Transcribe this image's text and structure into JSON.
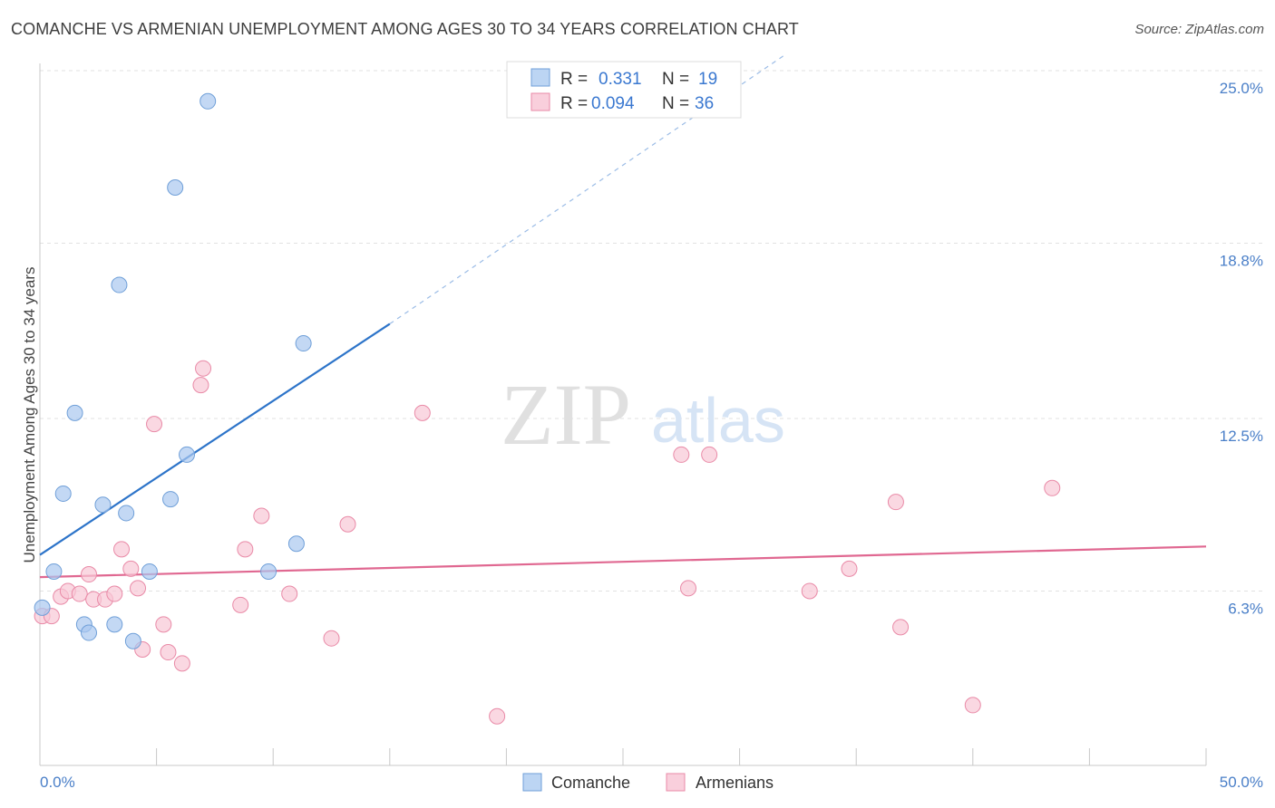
{
  "title": "COMANCHE VS ARMENIAN UNEMPLOYMENT AMONG AGES 30 TO 34 YEARS CORRELATION CHART",
  "source": "Source: ZipAtlas.com",
  "watermark": {
    "zip": "ZIP",
    "atlas": "atlas"
  },
  "legend_top": {
    "rows": [
      {
        "r_label": "R = ",
        "r_value": "0.331",
        "n_label": "N = ",
        "n_value": "19"
      },
      {
        "r_label": "R = ",
        "r_value": "0.094",
        "n_label": "N = ",
        "n_value": "36"
      }
    ]
  },
  "chart_data": {
    "type": "scatter",
    "title": "COMANCHE VS ARMENIAN UNEMPLOYMENT AMONG AGES 30 TO 34 YEARS CORRELATION CHART",
    "xlabel": "",
    "ylabel": "Unemployment Among Ages 30 to 34 years",
    "xlim": [
      0,
      50
    ],
    "ylim": [
      0,
      25.6
    ],
    "x_tick_labels": [
      "0.0%",
      "50.0%"
    ],
    "y_ticks": [
      6.3,
      12.5,
      18.8,
      25.0
    ],
    "y_tick_labels": [
      "6.3%",
      "12.5%",
      "18.8%",
      "25.0%"
    ],
    "grid": true,
    "legend_position": "bottom",
    "series": [
      {
        "name": "Comanche",
        "color": "#a9c8ef",
        "edge": "#6f9fd8",
        "line_color": "#2d74c9",
        "trend": {
          "x0": 0,
          "y0": 7.6,
          "x1": 15,
          "y1": 15.9,
          "dash_to_x": 32,
          "dash_to_y": 25.6
        },
        "points": [
          [
            0.1,
            5.7
          ],
          [
            0.6,
            7.0
          ],
          [
            1.0,
            9.8
          ],
          [
            1.5,
            12.7
          ],
          [
            1.9,
            5.1
          ],
          [
            2.1,
            4.8
          ],
          [
            2.7,
            9.4
          ],
          [
            3.2,
            5.1
          ],
          [
            3.7,
            9.1
          ],
          [
            4.0,
            4.5
          ],
          [
            4.7,
            7.0
          ],
          [
            5.6,
            9.6
          ],
          [
            5.8,
            20.8
          ],
          [
            6.3,
            11.2
          ],
          [
            7.2,
            23.9
          ],
          [
            3.4,
            17.3
          ],
          [
            9.8,
            7.0
          ],
          [
            11.0,
            8.0
          ],
          [
            11.3,
            15.2
          ]
        ]
      },
      {
        "name": "Armenians",
        "color": "#f8c8d6",
        "edge": "#e98aa7",
        "line_color": "#e06891",
        "trend": {
          "x0": 0,
          "y0": 6.8,
          "x1": 50,
          "y1": 7.9
        },
        "points": [
          [
            0.1,
            5.4
          ],
          [
            0.5,
            5.4
          ],
          [
            0.9,
            6.1
          ],
          [
            1.2,
            6.3
          ],
          [
            1.7,
            6.2
          ],
          [
            2.1,
            6.9
          ],
          [
            2.3,
            6.0
          ],
          [
            2.8,
            6.0
          ],
          [
            3.2,
            6.2
          ],
          [
            3.5,
            7.8
          ],
          [
            3.9,
            7.1
          ],
          [
            4.2,
            6.4
          ],
          [
            4.4,
            4.2
          ],
          [
            4.9,
            12.3
          ],
          [
            5.3,
            5.1
          ],
          [
            5.5,
            4.1
          ],
          [
            6.1,
            3.7
          ],
          [
            6.9,
            13.7
          ],
          [
            7.0,
            14.3
          ],
          [
            8.6,
            5.8
          ],
          [
            8.8,
            7.8
          ],
          [
            9.5,
            9.0
          ],
          [
            10.7,
            6.2
          ],
          [
            12.5,
            4.6
          ],
          [
            13.2,
            8.7
          ],
          [
            16.4,
            12.7
          ],
          [
            19.6,
            1.8
          ],
          [
            27.5,
            11.2
          ],
          [
            27.8,
            6.4
          ],
          [
            28.7,
            11.2
          ],
          [
            33.0,
            6.3
          ],
          [
            34.7,
            7.1
          ],
          [
            36.7,
            9.5
          ],
          [
            36.9,
            5.0
          ],
          [
            40.0,
            2.2
          ],
          [
            43.4,
            10.0
          ]
        ]
      }
    ]
  }
}
